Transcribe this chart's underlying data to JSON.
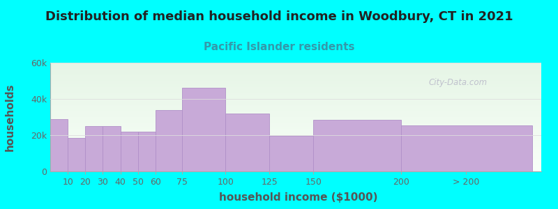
{
  "title": "Distribution of median household income in Woodbury, CT in 2021",
  "subtitle": "Pacific Islander residents",
  "xlabel": "household income ($1000)",
  "ylabel": "households",
  "background_color": "#00FFFF",
  "plot_bg_color_top": "#e6f5e6",
  "plot_bg_color_bottom": "#f8fff8",
  "bar_color": "#c8aad8",
  "bar_edge_color": "#b090c8",
  "values": [
    29000,
    18500,
    25000,
    25000,
    22000,
    22000,
    34000,
    46000,
    32000,
    19500,
    28500,
    25500
  ],
  "lefts": [
    0,
    10,
    20,
    30,
    40,
    50,
    60,
    75,
    100,
    125,
    150,
    200
  ],
  "widths": [
    10,
    10,
    10,
    10,
    10,
    10,
    15,
    25,
    25,
    25,
    50,
    75
  ],
  "xlim": [
    0,
    280
  ],
  "ylim": [
    0,
    60000
  ],
  "xtick_positions": [
    10,
    20,
    30,
    40,
    50,
    60,
    75,
    100,
    125,
    150,
    200,
    237
  ],
  "xtick_labels": [
    "10",
    "20",
    "30",
    "40",
    "50",
    "60",
    "75",
    "100",
    "125",
    "150",
    "200",
    "> 200"
  ],
  "ytick_values": [
    0,
    20000,
    40000,
    60000
  ],
  "ytick_labels": [
    "0",
    "20k",
    "40k",
    "60k"
  ],
  "watermark": "City-Data.com",
  "title_fontsize": 13,
  "subtitle_fontsize": 11,
  "axis_label_fontsize": 11,
  "tick_fontsize": 9,
  "subtitle_color": "#3399aa",
  "title_color": "#222222",
  "axis_label_color": "#555555",
  "tick_color": "#666666",
  "watermark_color": "#b8b8c8",
  "grid_color": "#dddddd"
}
